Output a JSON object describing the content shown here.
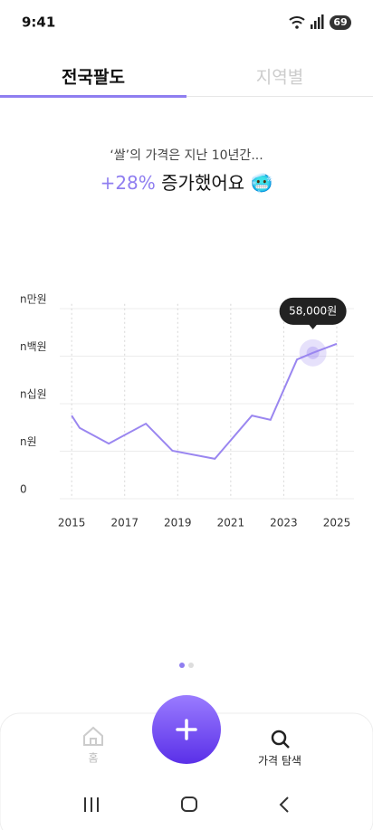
{
  "status_bar": {
    "time": "9:41",
    "battery": "69"
  },
  "tabs": [
    "전국팔도",
    "지역별"
  ],
  "headline": {
    "subtitle": "‘쌀’의 가격은 지난 10년간...",
    "highlight": "+28%",
    "text": "증가했어요",
    "emoji": "🥶"
  },
  "chart_data": {
    "type": "line",
    "x": [
      2015,
      2015.3,
      2016.4,
      2017.8,
      2018.8,
      2020.4,
      2021.8,
      2022.5,
      2023.5,
      2024.1,
      2025
    ],
    "values": [
      1.75,
      1.49,
      1.16,
      1.58,
      1.01,
      0.84,
      1.75,
      1.66,
      2.93,
      3.07,
      3.26
    ],
    "color": "#9a86f0",
    "xlim": [
      2014.55,
      2025.65
    ],
    "xticks": [
      2015,
      2017,
      2019,
      2021,
      2023,
      2025
    ],
    "ylim": [
      0,
      4.1
    ],
    "yticks": [
      0,
      {
        "value": 1,
        "label": "n원"
      },
      {
        "value": 2,
        "label": "n십원"
      },
      {
        "value": 3,
        "label": "n백원"
      },
      {
        "value": 4,
        "label": "n만원"
      }
    ],
    "grid": true,
    "tooltip": "58,000원"
  },
  "bottom_nav": {
    "home": "홈",
    "search": "가격 탐색"
  }
}
